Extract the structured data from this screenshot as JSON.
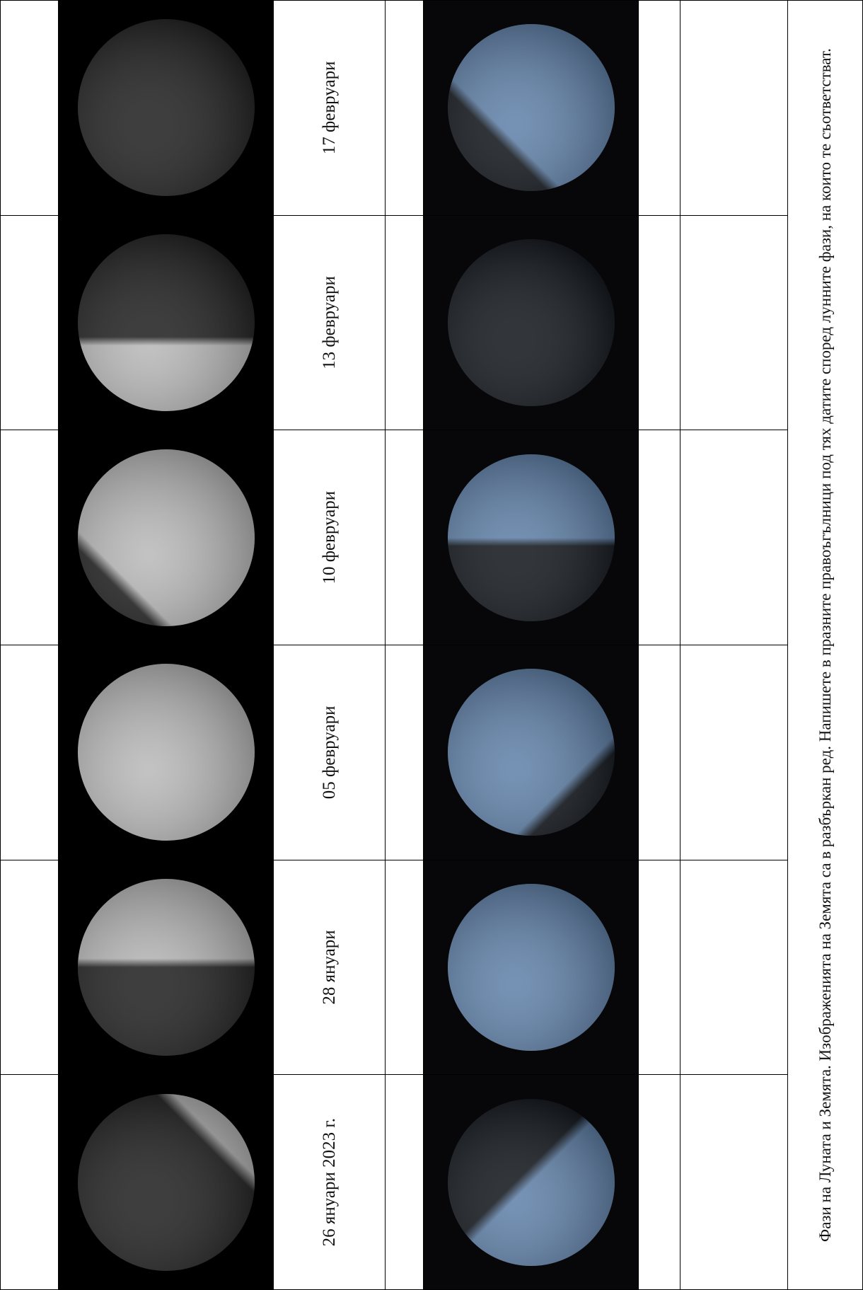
{
  "table": {
    "dates": [
      "26 януари 2023 г.",
      "28 януари",
      "05 февруари",
      "10 февруари",
      "13 февруари",
      "17 февруари"
    ],
    "caption": "Фази на Луната и Земята. Изображенията на Земята са в разбъркан ред. Напишете в празните правоъгълници под тях датите според лунните фази, на които те съответстват."
  }
}
